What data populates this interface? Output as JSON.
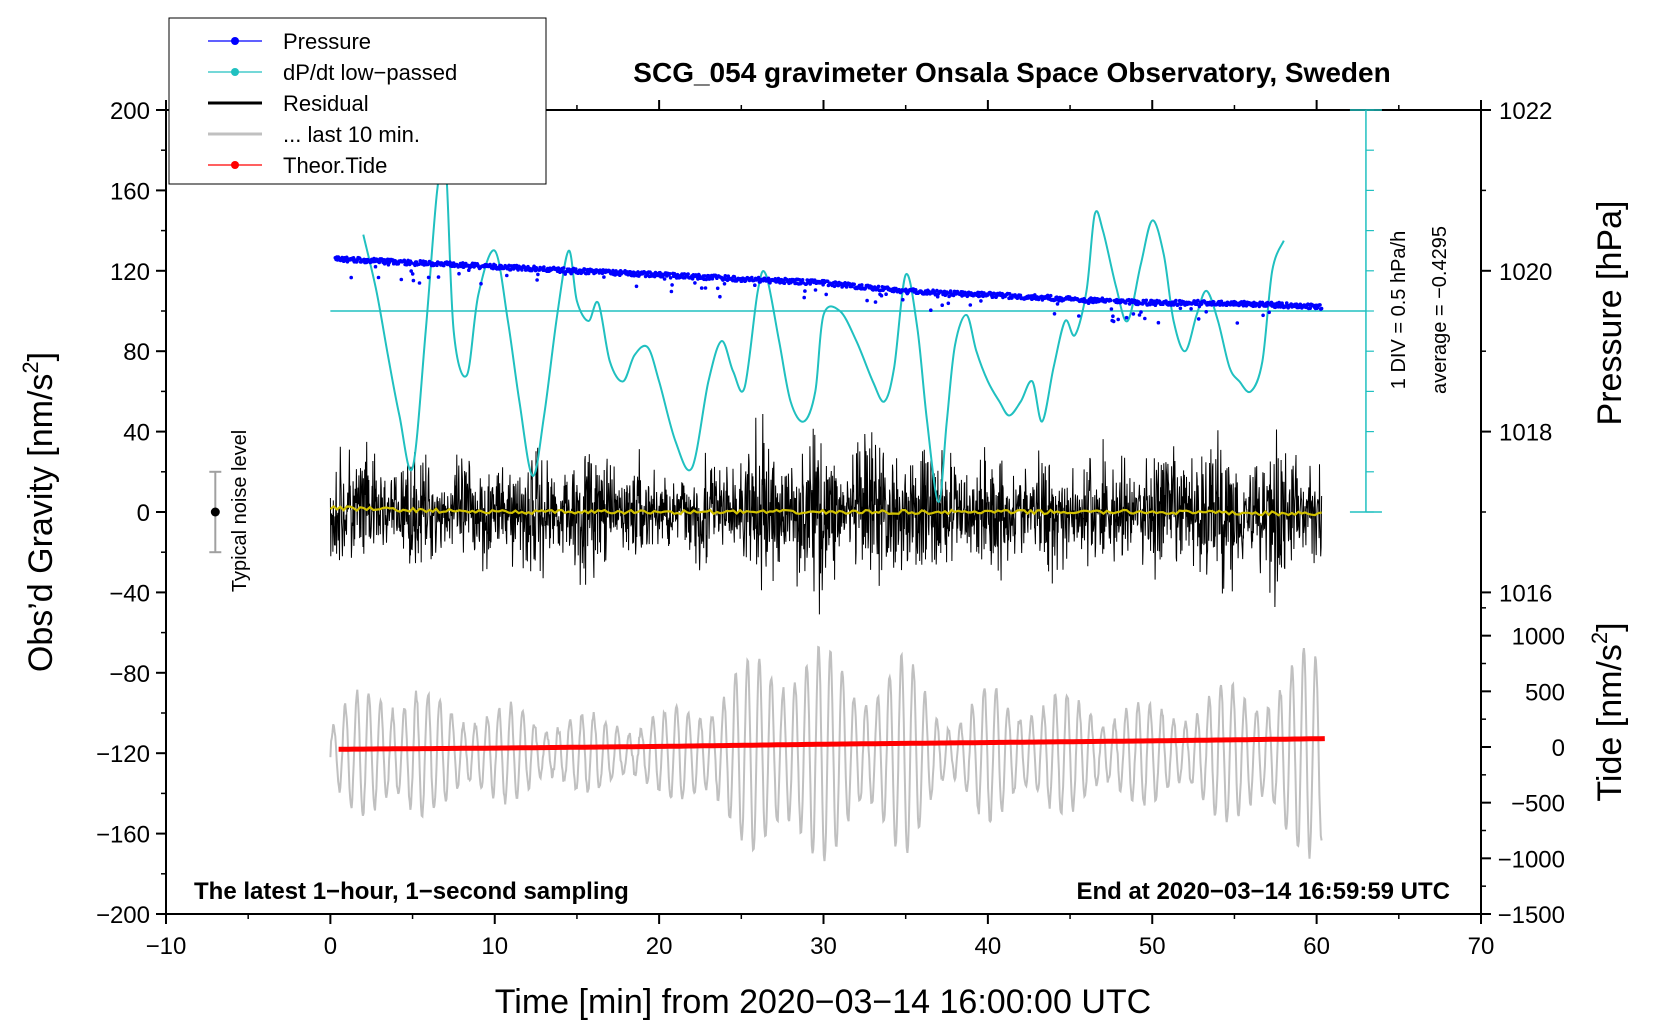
{
  "chart_data": {
    "type": "line",
    "title": "SCG_054 gravimeter Onsala Space Observatory, Sweden",
    "xlabel": "Time [min] from 2020−03−14 16:00:00 UTC",
    "ylabel_left": "Obs’d Gravity [nm/s",
    "ylabel_left_sup": "2",
    "ylabel_left_end": "]",
    "ylabel_right_pressure": "Pressure [hPa]",
    "ylabel_right_tide": "Tide [nm/s",
    "ylabel_right_tide_sup": "2",
    "ylabel_right_tide_end": "]",
    "xlim": [
      -10,
      70
    ],
    "ylim": [
      -200,
      200
    ],
    "x_ticks": [
      -10,
      0,
      10,
      20,
      30,
      40,
      50,
      60,
      70
    ],
    "x_tick_labels": [
      "−10",
      "0",
      "10",
      "20",
      "30",
      "40",
      "50",
      "60",
      "70"
    ],
    "y_ticks": [
      -200,
      -160,
      -120,
      -80,
      -40,
      0,
      40,
      80,
      120,
      160,
      200
    ],
    "y_tick_labels": [
      "−200",
      "−160",
      "−120",
      "−80",
      "−40",
      "0",
      "40",
      "80",
      "120",
      "160",
      "200"
    ],
    "pressure_axis": {
      "ticks": [
        1016,
        1018,
        1020,
        1022
      ],
      "tick_labels": [
        "1016",
        "1018",
        "1020",
        "1022"
      ],
      "anchor_value_1020_at_gravity": 120,
      "gravity_units_per_hpa": 40
    },
    "tide_axis": {
      "ticks": [
        -1500,
        -1000,
        -500,
        0,
        500,
        1000
      ],
      "tick_labels": [
        "−1500",
        "−1000",
        "−500",
        "0",
        "500",
        "1000"
      ],
      "range": [
        -1500,
        1500
      ]
    },
    "dpdt_scale": {
      "label": "1 DIV = 0.5 hPa/h",
      "average": "average = −0.4295",
      "baseline_gravity": 100,
      "x_minutes": 63
    },
    "noise_indicator": {
      "label": "Typical noise level",
      "x_minutes": -7,
      "center": 0,
      "half_range": 20
    },
    "annotations": {
      "bottom_left": "The latest 1−hour, 1−second sampling",
      "bottom_right": "End at 2020−03−14 16:59:59 UTC"
    },
    "legend": [
      {
        "name": "Pressure",
        "color": "#0000ff",
        "marker": "dot"
      },
      {
        "name": "dP/dt low−passed",
        "color": "#20c0c0",
        "marker": "dot"
      },
      {
        "name": "Residual",
        "color": "#000000",
        "marker": "none"
      },
      {
        "name": "... last 10 min.",
        "color": "#c0c0c0",
        "marker": "none"
      },
      {
        "name": "Theor.Tide",
        "color": "#ff0000",
        "marker": "dot"
      }
    ],
    "series": [
      {
        "name": "Pressure",
        "axis": "pressure_hPa",
        "color": "#0000ff",
        "x": [
          0.3,
          5,
          10,
          15,
          20,
          25,
          30,
          35,
          40,
          45,
          50,
          55,
          60.3
        ],
        "y": [
          1020.15,
          1020.1,
          1020.05,
          1020.0,
          1019.95,
          1019.9,
          1019.85,
          1019.75,
          1019.7,
          1019.65,
          1019.6,
          1019.6,
          1019.55
        ]
      },
      {
        "name": "dP/dt low−passed",
        "axis": "gravity",
        "color": "#20c0c0",
        "x": [
          2,
          2.8,
          3.5,
          4.2,
          5,
          5.8,
          6.5,
          7,
          7.5,
          8.3,
          9,
          10,
          10.8,
          11.5,
          12.3,
          13,
          13.8,
          14.5,
          15,
          15.7,
          16.3,
          17,
          17.8,
          18.5,
          19.3,
          20,
          21,
          22,
          23,
          23.8,
          24.5,
          25.2,
          26,
          26.5,
          27.3,
          28,
          28.8,
          29.5,
          30,
          31,
          32,
          33,
          33.7,
          34.3,
          35,
          35.7,
          36.3,
          37,
          37.5,
          38,
          38.7,
          39.3,
          40,
          40.7,
          41.3,
          42,
          42.7,
          43.3,
          44,
          44.7,
          45.3,
          46,
          46.5,
          47,
          47.8,
          48.5,
          49.3,
          50,
          50.7,
          51.3,
          52,
          52.7,
          53.3,
          54,
          54.7,
          55.3,
          56,
          56.7,
          57.3,
          58
        ],
        "y": [
          138,
          110,
          78,
          48,
          22,
          90,
          160,
          175,
          90,
          68,
          108,
          130,
          95,
          55,
          18,
          48,
          98,
          130,
          105,
          95,
          104,
          75,
          65,
          78,
          82,
          65,
          35,
          22,
          65,
          85,
          70,
          62,
          110,
          118,
          85,
          55,
          45,
          60,
          98,
          100,
          85,
          65,
          55,
          72,
          118,
          92,
          45,
          5,
          45,
          83,
          98,
          80,
          65,
          55,
          48,
          55,
          65,
          45,
          72,
          95,
          88,
          110,
          148,
          140,
          112,
          95,
          123,
          145,
          128,
          95,
          80,
          98,
          110,
          95,
          72,
          65,
          60,
          75,
          120,
          135
        ]
      },
      {
        "name": "Residual",
        "axis": "gravity",
        "color": "#000000",
        "x": [
          0,
          5,
          10,
          15,
          20,
          25,
          28,
          30,
          35,
          40,
          45,
          50,
          55,
          60.3
        ],
        "amplitude": [
          45,
          35,
          40,
          45,
          30,
          45,
          55,
          50,
          50,
          40,
          40,
          45,
          55,
          40
        ]
      },
      {
        "name": "... last 10 min.",
        "axis": "gravity",
        "color": "#c0c0c0",
        "x": [
          0,
          3,
          6,
          10,
          15,
          20,
          25,
          28,
          32,
          35,
          38,
          40,
          45,
          50,
          55,
          60.3
        ],
        "center": [
          -120,
          -120,
          -120,
          -120,
          -120,
          -120,
          -120,
          -120,
          -120,
          -120,
          -120,
          -120,
          -120,
          -120,
          -120,
          -120
        ],
        "amplitude": [
          15,
          45,
          30,
          25,
          20,
          20,
          45,
          65,
          45,
          50,
          20,
          35,
          30,
          25,
          35,
          55
        ]
      },
      {
        "name": "Theor.Tide",
        "axis": "tide_nm_s2",
        "color": "#ff0000",
        "x": [
          0.5,
          10,
          20,
          30,
          40,
          50,
          60.5
        ],
        "y": [
          -20,
          -10,
          5,
          25,
          40,
          55,
          75
        ]
      },
      {
        "name": "Smoothed residual",
        "axis": "gravity",
        "color": "#d0c000",
        "x": [
          0,
          10,
          20,
          30,
          40,
          50,
          60.3
        ],
        "y": [
          2,
          0,
          0,
          0,
          0,
          0,
          -1
        ]
      }
    ]
  }
}
